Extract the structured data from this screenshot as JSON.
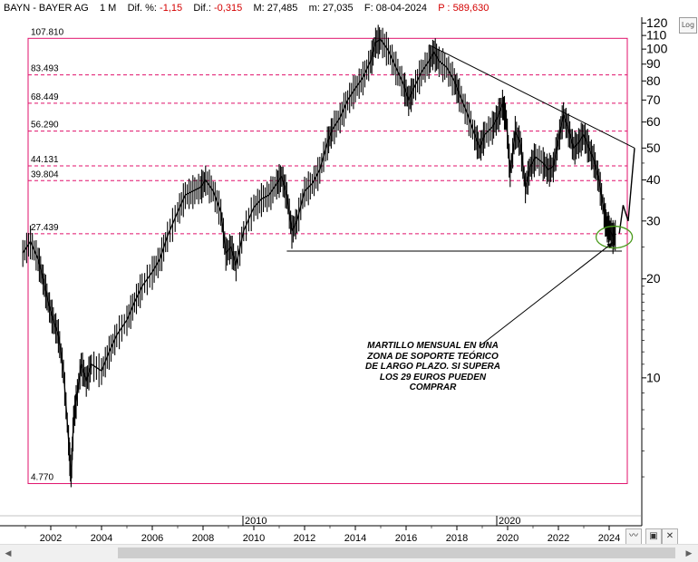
{
  "header": {
    "ticker": "BAYN - BAYER AG",
    "period": "1 M",
    "dif_pct_label": "Dif. %:",
    "dif_pct_value": "-1,15",
    "dif_label": "Dif.:",
    "dif_value": "-0,315",
    "max_label": "M:",
    "max_value": "27,485",
    "min_label": "m:",
    "min_value": "27,035",
    "date_label": "F:",
    "date_value": "08-04-2024",
    "p_label": "P :",
    "p_value": "589,630"
  },
  "controls": {
    "log_button": "Log",
    "icons": [
      "wave-icon",
      "save-icon",
      "close-icon"
    ]
  },
  "colors": {
    "level_line": "#e0116b",
    "price": "#000000",
    "support_circle": "#4a9a1c",
    "neg_text": "#d40000"
  },
  "annotation": {
    "lines": [
      "MARTILLO MENSUAL EN UNA",
      "ZONA DE SOPORTE TEÓRICO",
      "DE LARGO PLAZO. SI SUPERA",
      "LOS 29 EUROS PUEDEN",
      "COMPRAR"
    ]
  },
  "chart_data": {
    "type": "line",
    "title": "",
    "xlabel": "",
    "ylabel": "",
    "y_scale": "log",
    "ylim": [
      3.55,
      125
    ],
    "xlim": [
      2000.8,
      2025.0
    ],
    "y_ticks": [
      10,
      20,
      30,
      40,
      50,
      60,
      70,
      80,
      90,
      100,
      110,
      120
    ],
    "x_ticks": [
      {
        "value": 2002,
        "label": "2002"
      },
      {
        "value": 2004,
        "label": "2004"
      },
      {
        "value": 2006,
        "label": "2006"
      },
      {
        "value": 2008,
        "label": "2008"
      },
      {
        "value": 2010,
        "label": "2010"
      },
      {
        "value": 2012,
        "label": "2012"
      },
      {
        "value": 2014,
        "label": "2014"
      },
      {
        "value": 2016,
        "label": "2016"
      },
      {
        "value": 2018,
        "label": "2018"
      },
      {
        "value": 2020,
        "label": "2020"
      },
      {
        "value": 2022,
        "label": "2022"
      },
      {
        "value": 2024,
        "label": "2024"
      }
    ],
    "upper_axis_labels": [
      {
        "value": 2010,
        "label": "2010"
      },
      {
        "value": 2020,
        "label": "2020"
      }
    ],
    "levels": [
      {
        "label": "107.810",
        "value": 107.81
      },
      {
        "label": "83.493",
        "value": 83.493
      },
      {
        "label": "68.449",
        "value": 68.449
      },
      {
        "label": "56.290",
        "value": 56.29
      },
      {
        "label": "44.131",
        "value": 44.131
      },
      {
        "label": "39.804",
        "value": 39.804
      },
      {
        "label": "27.439",
        "value": 27.439
      },
      {
        "label": "4.770",
        "value": 4.77
      }
    ],
    "series": [
      {
        "kind": "price",
        "points": [
          [
            2000.9,
            24
          ],
          [
            2001.2,
            26
          ],
          [
            2001.5,
            23
          ],
          [
            2001.7,
            20
          ],
          [
            2001.9,
            17
          ],
          [
            2002.1,
            15
          ],
          [
            2002.3,
            13.5
          ],
          [
            2002.5,
            10.5
          ],
          [
            2002.7,
            6.5
          ],
          [
            2002.8,
            5.0
          ],
          [
            2002.9,
            7.5
          ],
          [
            2003.0,
            8.5
          ],
          [
            2003.2,
            11
          ],
          [
            2003.4,
            9.8
          ],
          [
            2003.6,
            11
          ],
          [
            2004.0,
            10.5
          ],
          [
            2004.3,
            12
          ],
          [
            2004.6,
            13.5
          ],
          [
            2005.0,
            15
          ],
          [
            2005.3,
            17
          ],
          [
            2005.6,
            19
          ],
          [
            2006.0,
            21
          ],
          [
            2006.3,
            23
          ],
          [
            2006.6,
            27
          ],
          [
            2007.0,
            32
          ],
          [
            2007.3,
            36
          ],
          [
            2007.6,
            37
          ],
          [
            2007.9,
            38
          ],
          [
            2008.1,
            40
          ],
          [
            2008.4,
            37
          ],
          [
            2008.7,
            32
          ],
          [
            2008.9,
            24
          ],
          [
            2009.1,
            25
          ],
          [
            2009.3,
            22
          ],
          [
            2009.6,
            28
          ],
          [
            2010.0,
            33
          ],
          [
            2010.3,
            35
          ],
          [
            2010.6,
            36
          ],
          [
            2010.9,
            39
          ],
          [
            2011.1,
            41
          ],
          [
            2011.3,
            36
          ],
          [
            2011.5,
            28
          ],
          [
            2011.7,
            30
          ],
          [
            2012.0,
            37
          ],
          [
            2012.3,
            39
          ],
          [
            2012.6,
            43
          ],
          [
            2012.9,
            52
          ],
          [
            2013.1,
            57
          ],
          [
            2013.4,
            62
          ],
          [
            2013.7,
            70
          ],
          [
            2014.0,
            76
          ],
          [
            2014.3,
            82
          ],
          [
            2014.6,
            92
          ],
          [
            2014.8,
            105
          ],
          [
            2015.0,
            107
          ],
          [
            2015.3,
            99
          ],
          [
            2015.6,
            88
          ],
          [
            2015.9,
            78
          ],
          [
            2016.1,
            70
          ],
          [
            2016.3,
            76
          ],
          [
            2016.6,
            85
          ],
          [
            2016.9,
            92
          ],
          [
            2017.1,
            98
          ],
          [
            2017.3,
            92
          ],
          [
            2017.6,
            88
          ],
          [
            2017.9,
            80
          ],
          [
            2018.1,
            73
          ],
          [
            2018.4,
            64
          ],
          [
            2018.7,
            55
          ],
          [
            2018.9,
            50
          ],
          [
            2019.1,
            55
          ],
          [
            2019.4,
            58
          ],
          [
            2019.6,
            62
          ],
          [
            2019.8,
            68
          ],
          [
            2019.95,
            61
          ],
          [
            2020.1,
            42
          ],
          [
            2020.3,
            56
          ],
          [
            2020.5,
            52
          ],
          [
            2020.7,
            38
          ],
          [
            2020.9,
            44
          ],
          [
            2021.1,
            47
          ],
          [
            2021.4,
            45
          ],
          [
            2021.6,
            43
          ],
          [
            2021.8,
            44
          ],
          [
            2022.0,
            53
          ],
          [
            2022.2,
            63
          ],
          [
            2022.4,
            57
          ],
          [
            2022.6,
            50
          ],
          [
            2022.8,
            52
          ],
          [
            2023.0,
            55
          ],
          [
            2023.2,
            50
          ],
          [
            2023.4,
            46
          ],
          [
            2023.6,
            40
          ],
          [
            2023.8,
            32
          ],
          [
            2023.9,
            29
          ],
          [
            2024.0,
            28.5
          ],
          [
            2024.15,
            27.0
          ],
          [
            2024.27,
            27.4
          ]
        ]
      },
      {
        "kind": "projection",
        "points": [
          [
            2024.4,
            27.5
          ],
          [
            2024.55,
            33.5
          ],
          [
            2024.75,
            30
          ],
          [
            2025.0,
            50
          ]
        ]
      }
    ],
    "trendlines": [
      {
        "name": "resistance",
        "from": [
          2016.9,
          103
        ],
        "to": [
          2025.0,
          50
        ]
      },
      {
        "name": "support",
        "from": [
          2011.3,
          24.3
        ],
        "to": [
          2024.5,
          24.3
        ]
      }
    ],
    "annotation_arrow": {
      "from": [
        2018.9,
        12.5
      ],
      "to": [
        2024.15,
        25.8
      ]
    },
    "highlight_ellipse": {
      "center": [
        2024.2,
        26.8
      ]
    }
  }
}
